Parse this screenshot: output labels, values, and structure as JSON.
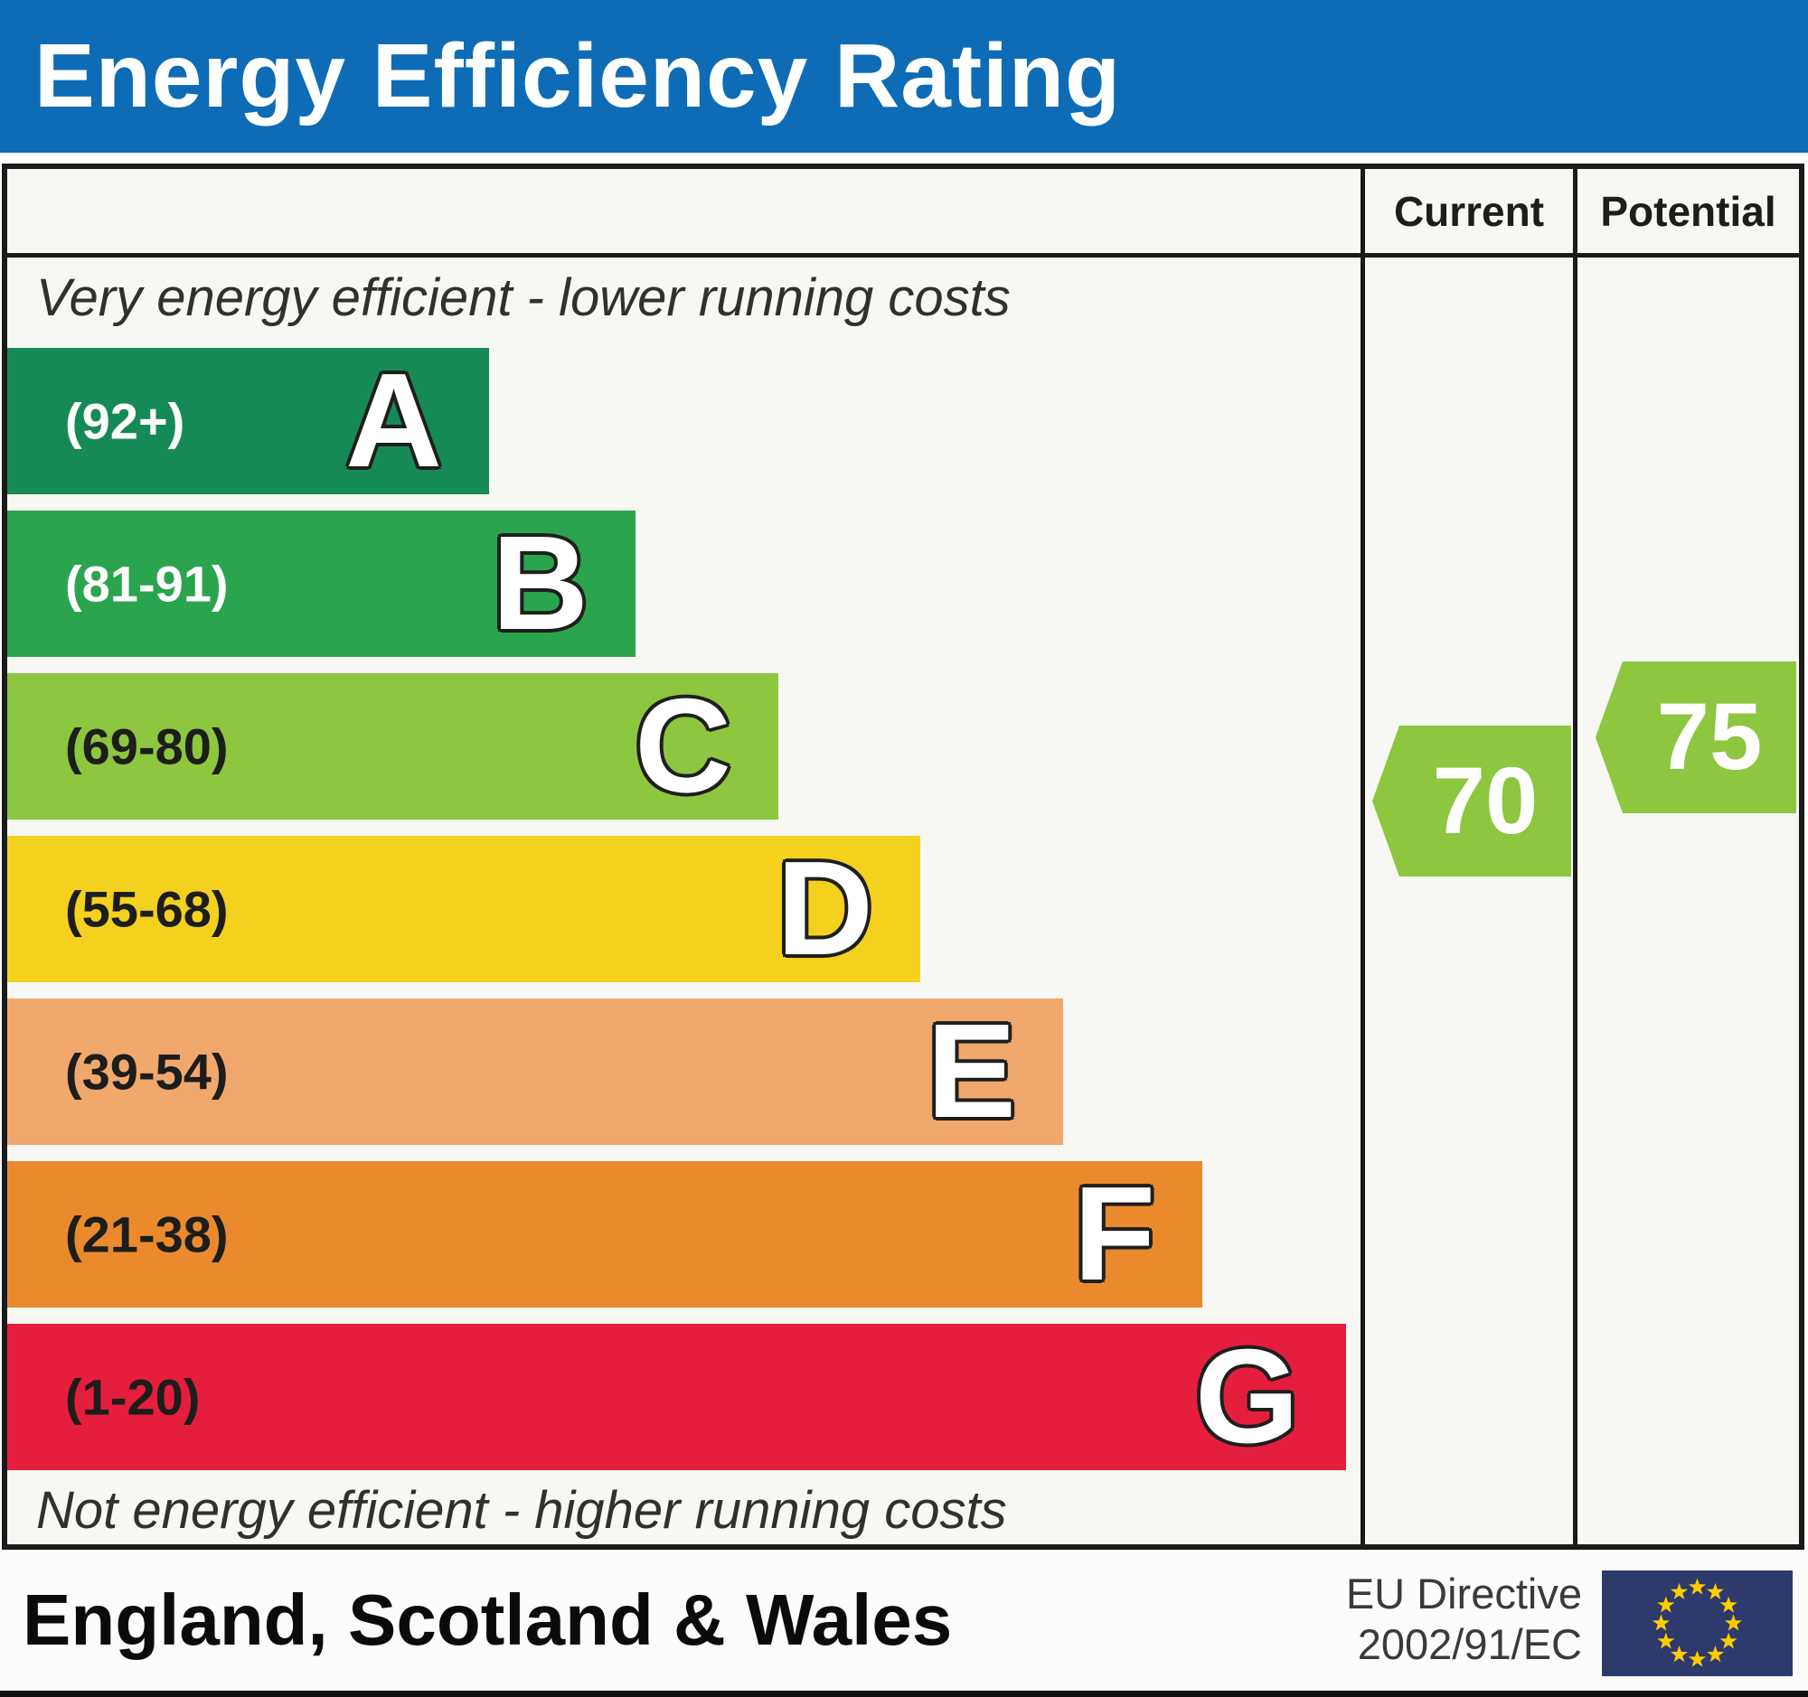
{
  "title": "Energy Efficiency Rating",
  "columns": {
    "current": "Current",
    "potential": "Potential"
  },
  "notes": {
    "top": "Very energy efficient - lower running costs",
    "bottom": "Not energy efficient - higher running costs"
  },
  "chart_data": {
    "type": "bar",
    "title": "Energy Efficiency Rating",
    "bands": [
      {
        "letter": "A",
        "range_label": "(92+)",
        "score_min": 92,
        "score_max": 100,
        "color": "#168a56",
        "label_color": "#ffffff",
        "length_pct": 35.6
      },
      {
        "letter": "B",
        "range_label": "(81-91)",
        "score_min": 81,
        "score_max": 91,
        "color": "#2ba44e",
        "label_color": "#ffffff",
        "length_pct": 46.4
      },
      {
        "letter": "C",
        "range_label": "(69-80)",
        "score_min": 69,
        "score_max": 80,
        "color": "#8dc63f",
        "label_color": "#1d1d1b",
        "length_pct": 57.0
      },
      {
        "letter": "D",
        "range_label": "(55-68)",
        "score_min": 55,
        "score_max": 68,
        "color": "#f4d01f",
        "label_color": "#1d1d1b",
        "length_pct": 67.5
      },
      {
        "letter": "E",
        "range_label": "(39-54)",
        "score_min": 39,
        "score_max": 54,
        "color": "#f1a86d",
        "label_color": "#1d1d1b",
        "length_pct": 78.0
      },
      {
        "letter": "F",
        "range_label": "(21-38)",
        "score_min": 21,
        "score_max": 38,
        "color": "#eb8a2d",
        "label_color": "#1d1d1b",
        "length_pct": 88.3
      },
      {
        "letter": "G",
        "range_label": "(1-20)",
        "score_min": 1,
        "score_max": 20,
        "color": "#e51e3d",
        "label_color": "#1d1d1b",
        "length_pct": 98.9
      }
    ],
    "ratings": {
      "current": {
        "value": 70,
        "band": "C",
        "arrow_color": "#8dc63f"
      },
      "potential": {
        "value": 75,
        "band": "C",
        "arrow_color": "#8dc63f"
      }
    }
  },
  "footer": {
    "region": "England, Scotland & Wales",
    "directive_line1": "EU Directive",
    "directive_line2": "2002/91/EC"
  },
  "colors": {
    "title_bar": "#0d6cb5",
    "eu_flag_bg": "#2d3a6b",
    "eu_flag_stars": "#ffcc00"
  }
}
